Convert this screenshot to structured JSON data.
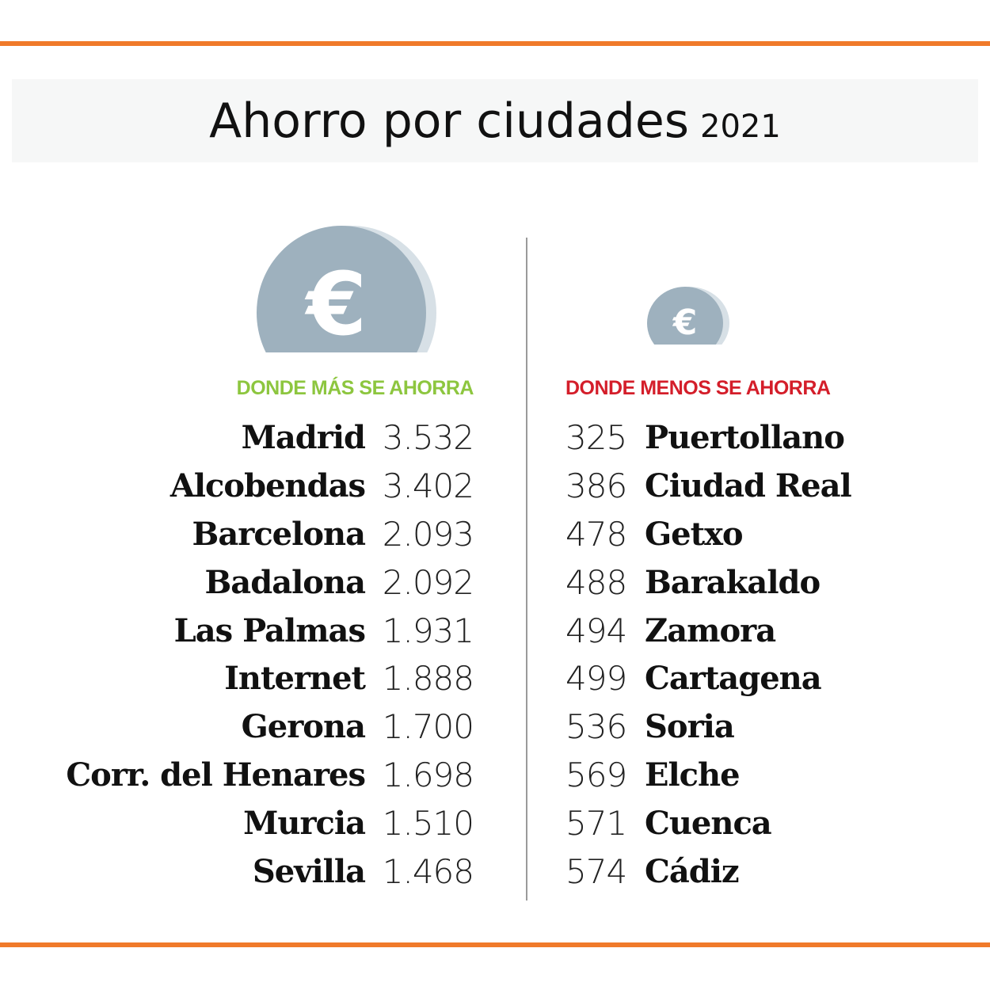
{
  "title": "Ahorro por ciudades",
  "year": "2021",
  "colors": {
    "accent": "#f07a2a",
    "more": "#8dc63f",
    "less": "#d41e2a",
    "coin": "#9eb1be"
  },
  "icons": {
    "left": "euro-coin-icon",
    "right": "euro-coin-icon"
  },
  "chart_data": {
    "type": "table",
    "title": "Ahorro por ciudades 2021",
    "tables": [
      {
        "heading": "DONDE MÁS SE AHORRA",
        "rows": [
          {
            "city": "Madrid",
            "value": "3.532"
          },
          {
            "city": "Alcobendas",
            "value": "3.402"
          },
          {
            "city": "Barcelona",
            "value": "2.093"
          },
          {
            "city": "Badalona",
            "value": "2.092"
          },
          {
            "city": "Las Palmas",
            "value": "1.931"
          },
          {
            "city": "Internet",
            "value": "1.888"
          },
          {
            "city": "Gerona",
            "value": "1.700"
          },
          {
            "city": "Corr. del Henares",
            "value": "1.698"
          },
          {
            "city": "Murcia",
            "value": "1.510"
          },
          {
            "city": "Sevilla",
            "value": "1.468"
          }
        ]
      },
      {
        "heading": "DONDE MENOS SE AHORRA",
        "rows": [
          {
            "city": "Puertollano",
            "value": "325"
          },
          {
            "city": "Ciudad Real",
            "value": "386"
          },
          {
            "city": "Getxo",
            "value": "478"
          },
          {
            "city": "Barakaldo",
            "value": "488"
          },
          {
            "city": "Zamora",
            "value": "494"
          },
          {
            "city": "Cartagena",
            "value": "499"
          },
          {
            "city": "Soria",
            "value": "536"
          },
          {
            "city": "Elche",
            "value": "569"
          },
          {
            "city": "Cuenca",
            "value": "571"
          },
          {
            "city": "Cádiz",
            "value": "574"
          }
        ]
      }
    ]
  }
}
